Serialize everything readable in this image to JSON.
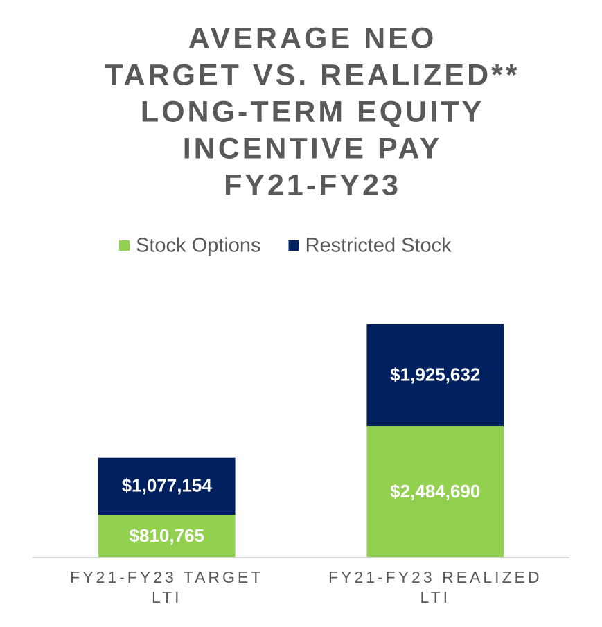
{
  "chart_data": {
    "type": "stacked-bar",
    "title": [
      "AVERAGE NEO",
      "TARGET VS. REALIZED**",
      "LONG-TERM EQUITY",
      "INCENTIVE PAY",
      "FY21-FY23"
    ],
    "categories": [
      [
        "FY21-FY23 TARGET",
        "LTI"
      ],
      [
        "FY21-FY23 REALIZED",
        "LTI"
      ]
    ],
    "series": [
      {
        "name": "Stock Options",
        "color": "#92d050",
        "values": [
          810765,
          2484690
        ],
        "value_labels": [
          "$810,765",
          "$2,484,690"
        ]
      },
      {
        "name": "Restricted Stock",
        "color": "#002060",
        "values": [
          1077154,
          1925632
        ],
        "value_labels": [
          "$1,077,154",
          "$1,925,632"
        ]
      }
    ],
    "ylim": [
      0,
      4500000
    ],
    "legend": "top"
  }
}
